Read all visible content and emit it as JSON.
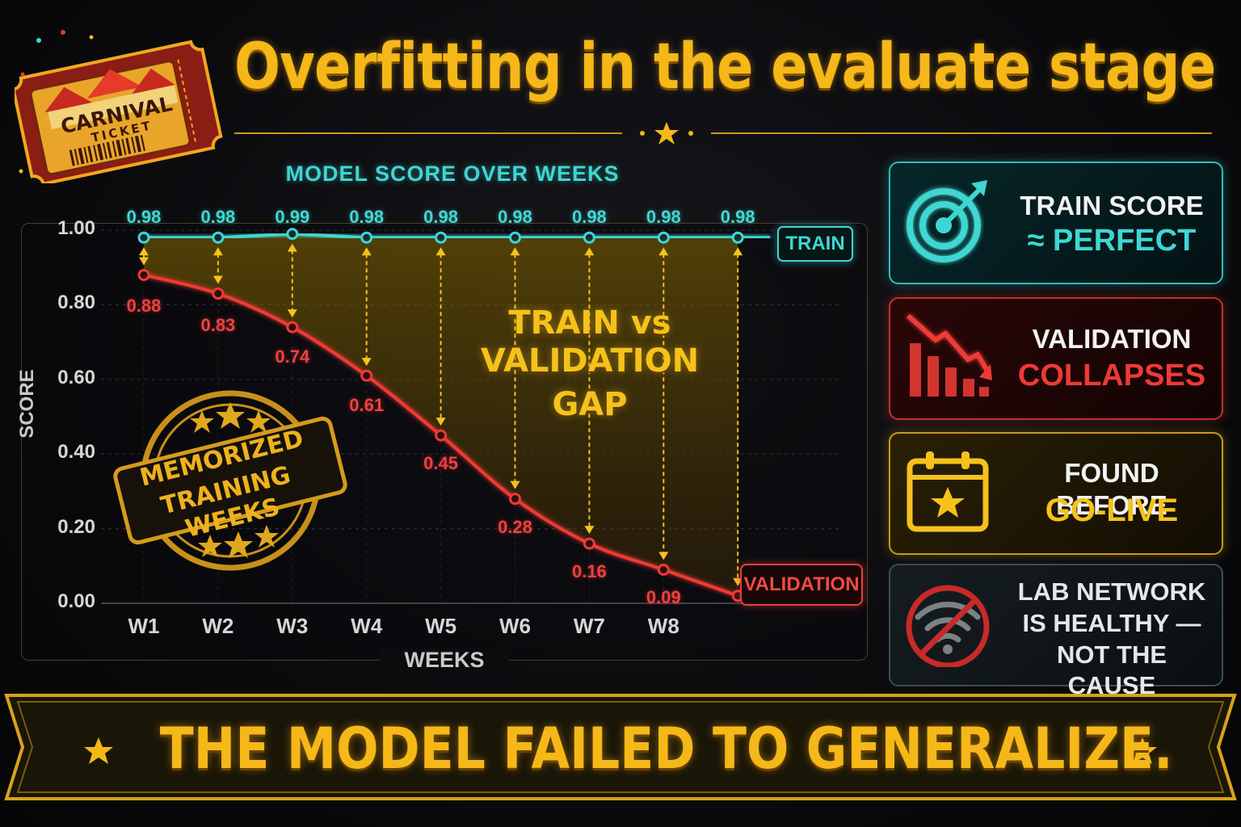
{
  "title": "Overfitting in the evaluate stage",
  "ticket": {
    "line1": "CARNIVAL",
    "line2": "TICKET"
  },
  "chart_data": {
    "type": "line",
    "title": "MODEL SCORE OVER WEEKS",
    "xlabel": "WEEKS",
    "ylabel": "SCORE",
    "ylim": [
      0,
      1
    ],
    "yticks": [
      "1.00",
      "0.80",
      "0.60",
      "0.40",
      "0.20",
      "0.00"
    ],
    "categories": [
      "W1",
      "W2",
      "W3",
      "W4",
      "W5",
      "W6",
      "W7",
      "W8",
      ""
    ],
    "series": [
      {
        "name": "TRAIN",
        "color": "#3fd6d2",
        "values": [
          0.98,
          0.98,
          0.99,
          0.98,
          0.98,
          0.98,
          0.98,
          0.98,
          0.98
        ],
        "labels": [
          "0.98",
          "0.98",
          "0.99",
          "0.98",
          "0.98",
          "0.98",
          "0.98",
          "0.98",
          "0.98"
        ]
      },
      {
        "name": "VALIDATION",
        "color": "#ee3a36",
        "values": [
          0.88,
          0.83,
          0.74,
          0.61,
          0.45,
          0.28,
          0.16,
          0.09,
          0.02
        ],
        "labels": [
          "0.88",
          "0.83",
          "0.74",
          "0.61",
          "0.45",
          "0.28",
          "0.16",
          "0.09",
          ""
        ]
      }
    ],
    "gap_annotation": {
      "line1": "TRAIN vs",
      "line2": "VALIDATION GAP"
    },
    "stamp": {
      "line1": "MEMORIZED",
      "line2": "TRAINING WEEKS"
    }
  },
  "cards": [
    {
      "icon": "target-icon",
      "line1": "TRAIN SCORE",
      "line2": "≈ PERFECT",
      "accent": "#3fd6d2"
    },
    {
      "icon": "falling-chart-icon",
      "line1": "VALIDATION",
      "line2": "COLLAPSES",
      "accent": "#ee3a36"
    },
    {
      "icon": "calendar-star-icon",
      "line1": "FOUND BEFORE",
      "line2": "GO-LIVE",
      "accent": "#f5c21c"
    },
    {
      "icon": "no-wifi-icon",
      "line1": "LAB NETWORK",
      "line2": "IS HEALTHY —",
      "line3": "NOT THE CAUSE",
      "accent": "#c9d2d6"
    }
  ],
  "banner": {
    "text": "THE MODEL FAILED TO GENERALIZE."
  }
}
